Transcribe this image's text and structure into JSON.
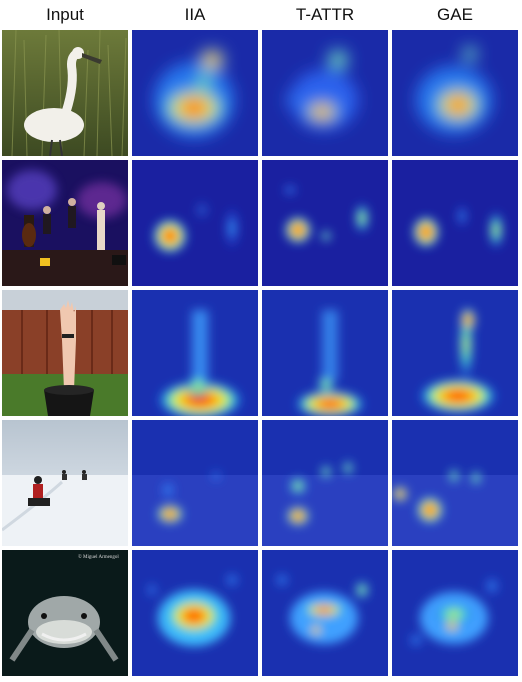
{
  "columns": {
    "input": "Input",
    "iia": "IIA",
    "tattr": "T-ATTR",
    "gae": "GAE"
  },
  "rows": [
    {
      "subject": "white spoonbill bird in grass"
    },
    {
      "subject": "musicians on a stage"
    },
    {
      "subject": "hand raised from a black bucket"
    },
    {
      "subject": "snowmobiles on snow"
    },
    {
      "subject": "shark underwater",
      "credit": "© Miguel Armengol"
    }
  ],
  "colors": {
    "heat_low": "#1a1aa8",
    "heat_high": "#d01010"
  }
}
